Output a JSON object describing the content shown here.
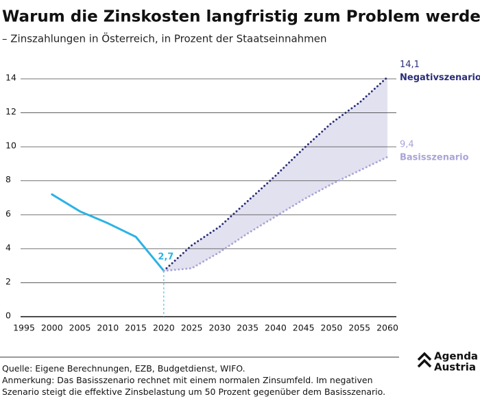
{
  "chart_data": {
    "type": "line",
    "title": "Warum die Zinskosten langfristig zum Problem werden",
    "subtitle": "– Zinszahlungen in Österreich, in Prozent der Staatseinnahmen",
    "x": [
      2000,
      2005,
      2010,
      2015,
      2020,
      2025,
      2030,
      2035,
      2040,
      2045,
      2050,
      2055,
      2060
    ],
    "xlim": [
      1995,
      2060
    ],
    "xticks": [
      1995,
      2000,
      2005,
      2010,
      2015,
      2020,
      2025,
      2030,
      2035,
      2040,
      2045,
      2050,
      2055,
      2060
    ],
    "ylim": [
      0,
      14
    ],
    "yticks": [
      0,
      2,
      4,
      6,
      8,
      10,
      12,
      14
    ],
    "grid": true,
    "series": [
      {
        "color": "#2bb3e4",
        "style": "solid",
        "values": [
          7.2,
          6.2,
          5.5,
          4.7,
          2.7,
          null,
          null,
          null,
          null,
          null,
          null,
          null,
          null
        ],
        "value_labels": [
          null,
          null,
          null,
          null,
          "2,7",
          null,
          null,
          null,
          null,
          null,
          null,
          null,
          null
        ]
      },
      {
        "name": "Negativszenario",
        "color": "#2b2e78",
        "style": "dotted",
        "values": [
          null,
          null,
          null,
          null,
          2.7,
          4.2,
          5.3,
          6.8,
          8.3,
          9.9,
          11.4,
          12.6,
          14.1
        ],
        "value_labels": [
          null,
          null,
          null,
          null,
          null,
          null,
          null,
          null,
          null,
          null,
          null,
          null,
          "14,1"
        ]
      },
      {
        "name": "Basisszenario",
        "color": "#a9a4d8",
        "style": "dotted",
        "values": [
          null,
          null,
          null,
          null,
          2.7,
          2.85,
          3.8,
          4.9,
          5.9,
          6.9,
          7.8,
          8.6,
          9.4
        ],
        "value_labels": [
          null,
          null,
          null,
          null,
          null,
          null,
          null,
          null,
          null,
          null,
          null,
          null,
          "9,4"
        ]
      }
    ],
    "band_color": "#e2e1f0",
    "source": "Quelle: Eigene Berechnungen, EZB, Budgetdienst, WIFO.",
    "note": "Anmerkung: Das Basisszenario rechnet mit einem normalen Zinsumfeld. Im negativen Szenario steigt die effektive Zinsbelastung um 50 Prozent gegenüber dem Basisszenario.",
    "logo": {
      "line1": "Agenda",
      "line2": "Austria"
    }
  }
}
